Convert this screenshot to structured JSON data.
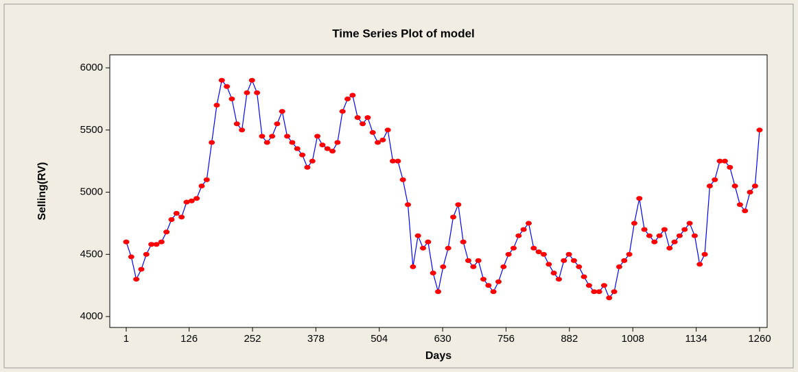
{
  "chart_data": {
    "type": "line",
    "title": "Time Series Plot of model",
    "x_label": "Days",
    "y_label": "Selling(RV)",
    "x": [
      1,
      11,
      21,
      31,
      41,
      51,
      61,
      71,
      81,
      91,
      101,
      111,
      121,
      131,
      141,
      151,
      161,
      171,
      181,
      191,
      201,
      211,
      221,
      231,
      241,
      251,
      261,
      271,
      281,
      291,
      301,
      311,
      321,
      331,
      341,
      351,
      361,
      371,
      381,
      391,
      401,
      411,
      421,
      431,
      441,
      451,
      461,
      471,
      481,
      491,
      501,
      511,
      521,
      531,
      541,
      551,
      561,
      571,
      581,
      591,
      601,
      611,
      621,
      631,
      641,
      651,
      661,
      671,
      681,
      691,
      701,
      711,
      721,
      731,
      741,
      751,
      761,
      771,
      781,
      791,
      801,
      811,
      821,
      831,
      841,
      851,
      861,
      871,
      881,
      891,
      901,
      911,
      921,
      931,
      941,
      951,
      961,
      971,
      981,
      991,
      1001,
      1011,
      1021,
      1031,
      1041,
      1051,
      1061,
      1071,
      1081,
      1091,
      1101,
      1111,
      1121,
      1131,
      1141,
      1151,
      1161,
      1171,
      1181,
      1191,
      1201,
      1211,
      1221,
      1231,
      1241,
      1251,
      1260
    ],
    "series": [
      {
        "name": "model",
        "color": "#0000ff",
        "marker_color": "#ff0000",
        "values": [
          4600,
          4480,
          4300,
          4380,
          4500,
          4580,
          4580,
          4600,
          4680,
          4780,
          4830,
          4800,
          4920,
          4930,
          4950,
          5050,
          5100,
          5400,
          5700,
          5900,
          5850,
          5750,
          5550,
          5500,
          5800,
          5900,
          5800,
          5450,
          5400,
          5450,
          5550,
          5650,
          5450,
          5400,
          5350,
          5300,
          5200,
          5250,
          5450,
          5380,
          5350,
          5330,
          5400,
          5650,
          5750,
          5780,
          5600,
          5550,
          5600,
          5480,
          5400,
          5420,
          5500,
          5250,
          5250,
          5100,
          4900,
          4400,
          4650,
          4550,
          4600,
          4350,
          4200,
          4400,
          4550,
          4800,
          4900,
          4600,
          4450,
          4400,
          4450,
          4300,
          4250,
          4200,
          4280,
          4400,
          4500,
          4550,
          4650,
          4700,
          4750,
          4550,
          4520,
          4500,
          4420,
          4350,
          4300,
          4450,
          4500,
          4450,
          4400,
          4320,
          4250,
          4200,
          4200,
          4250,
          4150,
          4200,
          4400,
          4450,
          4500,
          4750,
          4950,
          4700,
          4650,
          4600,
          4650,
          4700,
          4550,
          4600,
          4650,
          4700,
          4750,
          4650,
          4420,
          4500,
          5050,
          5100,
          5250,
          5250,
          5200,
          5050,
          4900,
          4850,
          5000,
          5050,
          5500
        ]
      }
    ],
    "xlim": [
      -31.7,
      1275
    ],
    "ylim": [
      3912,
      6105
    ],
    "xticks": [
      1,
      126,
      252,
      378,
      504,
      630,
      756,
      882,
      1008,
      1134,
      1260
    ],
    "yticks": [
      4000,
      4500,
      5000,
      5500,
      6000
    ]
  }
}
